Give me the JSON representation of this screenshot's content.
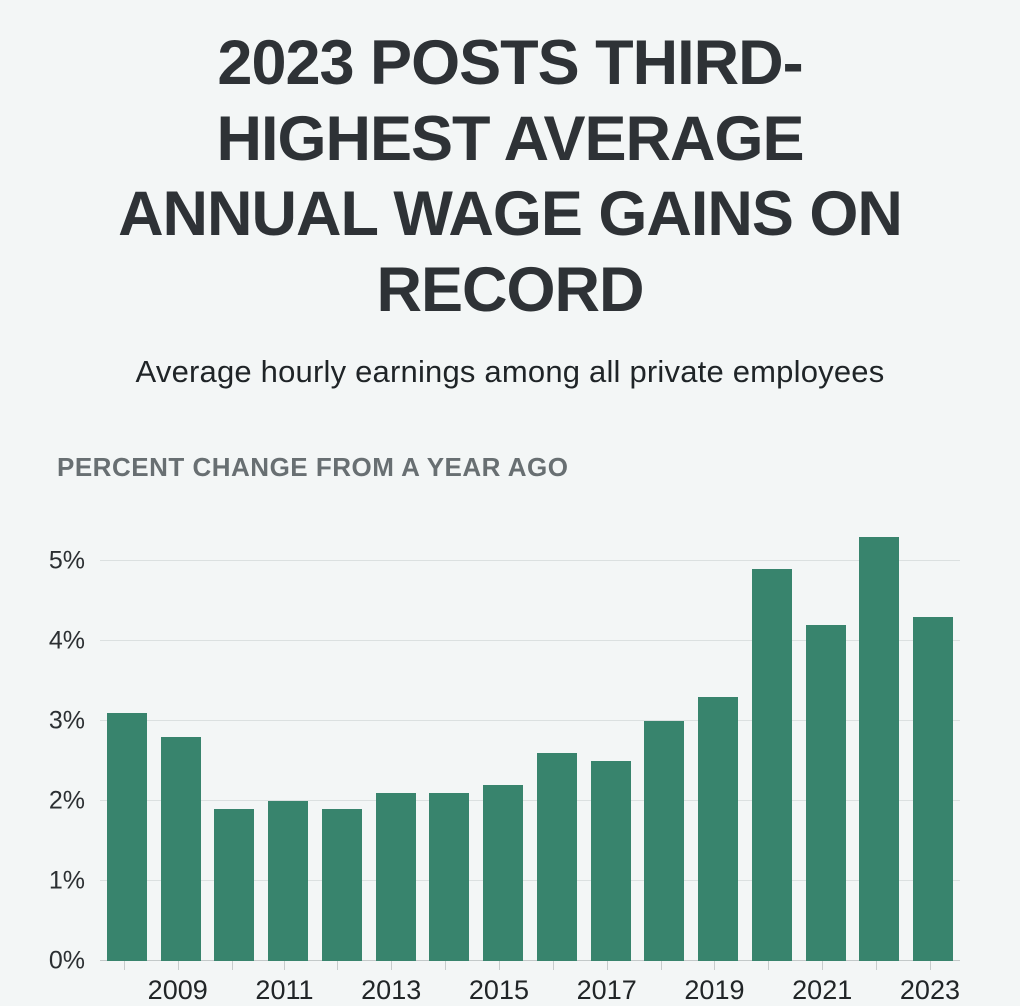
{
  "header": {
    "title": "2023 POSTS THIRD-HIGHEST AVERAGE ANNUAL WAGE GAINS ON RECORD",
    "subtitle": "Average hourly earnings among all private employees"
  },
  "chart": {
    "section_label": "PERCENT CHANGE FROM A YEAR AGO"
  },
  "chart_data": {
    "type": "bar",
    "title": "2023 posts third-highest average annual wage gains on record",
    "subtitle": "Average hourly earnings among all private employees",
    "ylabel": "Percent change from a year ago",
    "xlabel": "",
    "categories": [
      "2008",
      "2009",
      "2010",
      "2011",
      "2012",
      "2013",
      "2014",
      "2015",
      "2016",
      "2017",
      "2018",
      "2019",
      "2020",
      "2021",
      "2022",
      "2023"
    ],
    "values": [
      3.1,
      2.8,
      1.9,
      2.0,
      1.9,
      2.1,
      2.1,
      2.2,
      2.6,
      2.5,
      3.0,
      3.3,
      4.9,
      4.2,
      5.3,
      4.3
    ],
    "x_tick_labels_shown": [
      "2009",
      "2011",
      "2013",
      "2015",
      "2017",
      "2019",
      "2021",
      "2023"
    ],
    "y_ticks": [
      0,
      1,
      2,
      3,
      4,
      5
    ],
    "y_tick_labels": [
      "0%",
      "1%",
      "2%",
      "3%",
      "4%",
      "5%"
    ],
    "ylim": [
      0,
      5.5
    ],
    "grid": true,
    "legend": "none",
    "bar_color": "#38846d",
    "background_color": "#f3f6f6"
  }
}
